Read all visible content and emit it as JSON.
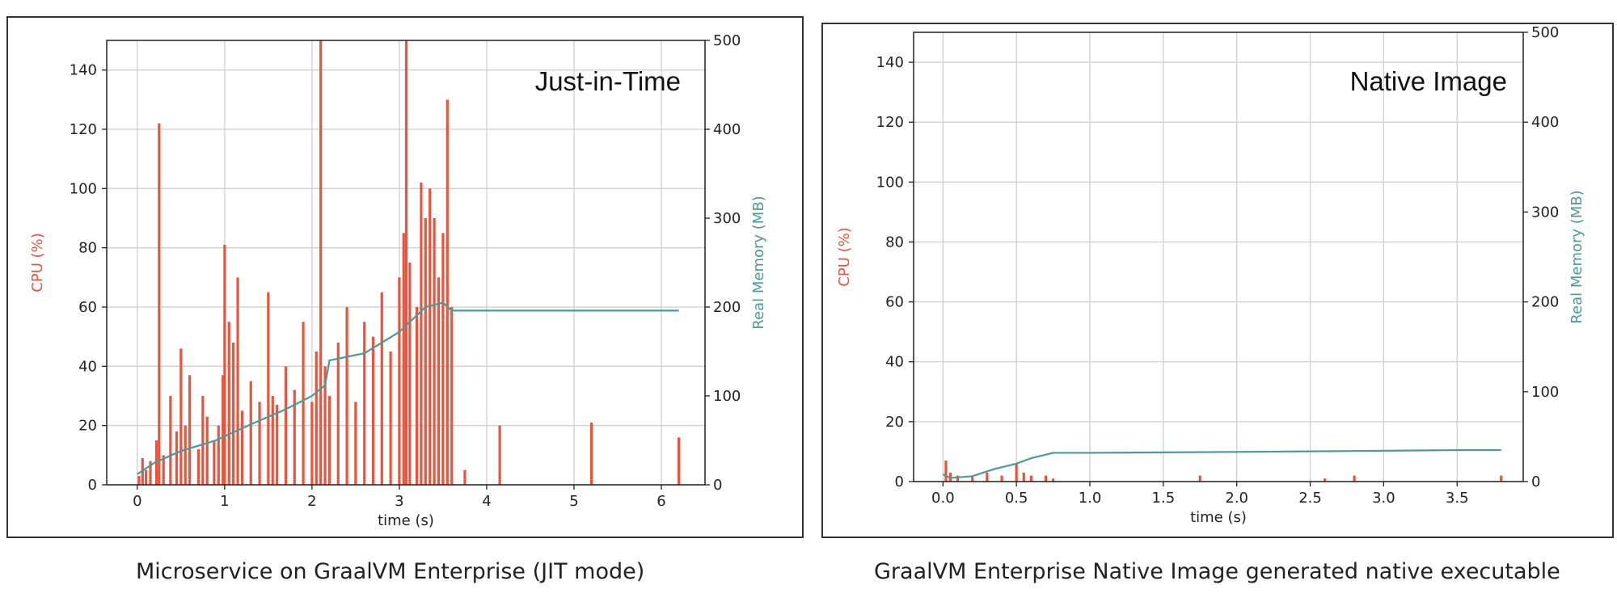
{
  "colors": {
    "cpu": "#e8553e",
    "memory": "#4a9a98",
    "grid": "#cfcfcf",
    "axis": "#222222"
  },
  "charts": [
    {
      "caption": "Microservice on GraalVM Enterprise (JIT mode)",
      "chart_data": {
        "type": "bar",
        "annotation": "Just-in-Time",
        "xlabel": "time (s)",
        "ylabel": "CPU (%)",
        "y2label": "Real Memory (MB)",
        "xlim": [
          -0.35,
          6.5
        ],
        "ylim": [
          0,
          150
        ],
        "y2lim": [
          0,
          500
        ],
        "xticks": [
          0,
          1,
          2,
          3,
          4,
          5,
          6
        ],
        "xtick_labels": [
          "0",
          "1",
          "2",
          "3",
          "4",
          "5",
          "6"
        ],
        "yticks": [
          0,
          20,
          40,
          60,
          80,
          100,
          120,
          140
        ],
        "y2ticks": [
          0,
          100,
          200,
          300,
          400,
          500
        ],
        "cpu_series": {
          "name": "CPU (%)",
          "x": [
            0.02,
            0.06,
            0.1,
            0.15,
            0.22,
            0.25,
            0.3,
            0.38,
            0.45,
            0.5,
            0.55,
            0.6,
            0.7,
            0.75,
            0.8,
            0.88,
            0.93,
            0.98,
            1.0,
            1.05,
            1.1,
            1.15,
            1.2,
            1.3,
            1.4,
            1.5,
            1.55,
            1.6,
            1.7,
            1.8,
            1.9,
            2.0,
            2.05,
            2.1,
            2.15,
            2.2,
            2.3,
            2.4,
            2.5,
            2.6,
            2.7,
            2.8,
            2.9,
            3.0,
            3.05,
            3.08,
            3.12,
            3.2,
            3.25,
            3.3,
            3.35,
            3.4,
            3.45,
            3.5,
            3.55,
            3.6,
            3.75,
            4.15,
            5.2,
            6.2
          ],
          "values": [
            3,
            9,
            5,
            8,
            15,
            122,
            10,
            30,
            18,
            46,
            20,
            37,
            12,
            30,
            23,
            15,
            20,
            37,
            81,
            55,
            48,
            70,
            25,
            35,
            28,
            65,
            30,
            27,
            40,
            32,
            55,
            28,
            45,
            150,
            40,
            30,
            48,
            60,
            28,
            55,
            50,
            65,
            45,
            70,
            85,
            150,
            75,
            60,
            102,
            90,
            100,
            90,
            70,
            85,
            130,
            60,
            5,
            20,
            21,
            16
          ]
        },
        "memory_series": {
          "name": "Real Memory (MB)",
          "x": [
            0,
            0.2,
            0.5,
            0.9,
            1.3,
            1.7,
            2.0,
            2.15,
            2.2,
            2.6,
            2.8,
            3.0,
            3.3,
            3.5,
            3.6,
            3.7,
            4.5,
            5.5,
            6.2
          ],
          "values": [
            12,
            25,
            38,
            50,
            68,
            85,
            100,
            112,
            140,
            148,
            160,
            172,
            200,
            205,
            196,
            196,
            196,
            196,
            196
          ]
        }
      }
    },
    {
      "caption": "GraalVM Enterprise Native Image generated native executable",
      "chart_data": {
        "type": "bar",
        "annotation": "Native Image",
        "xlabel": "time (s)",
        "ylabel": "CPU (%)",
        "y2label": "Real Memory (MB)",
        "xlim": [
          -0.2,
          3.95
        ],
        "ylim": [
          0,
          150
        ],
        "y2lim": [
          0,
          500
        ],
        "xticks": [
          0,
          0.5,
          1,
          1.5,
          2,
          2.5,
          3,
          3.5
        ],
        "xtick_labels": [
          "0.0",
          "0.5",
          "1.0",
          "1.5",
          "2.0",
          "2.5",
          "3.0",
          "3.5"
        ],
        "yticks": [
          0,
          20,
          40,
          60,
          80,
          100,
          120,
          140
        ],
        "y2ticks": [
          0,
          100,
          200,
          300,
          400,
          500
        ],
        "cpu_series": {
          "name": "CPU (%)",
          "x": [
            0.02,
            0.05,
            0.1,
            0.2,
            0.3,
            0.4,
            0.5,
            0.55,
            0.6,
            0.7,
            0.75,
            1.75,
            2.6,
            2.8,
            3.8
          ],
          "values": [
            7,
            3,
            2,
            2,
            3,
            2,
            6,
            3,
            2,
            2,
            1,
            2,
            1,
            2,
            2
          ]
        },
        "memory_series": {
          "name": "Real Memory (MB)",
          "x": [
            0,
            0.05,
            0.2,
            0.35,
            0.5,
            0.6,
            0.75,
            1.0,
            2.0,
            2.8,
            3.5,
            3.8
          ],
          "values": [
            8,
            4,
            6,
            14,
            20,
            26,
            32,
            32,
            33,
            34,
            35,
            35
          ]
        }
      }
    }
  ]
}
